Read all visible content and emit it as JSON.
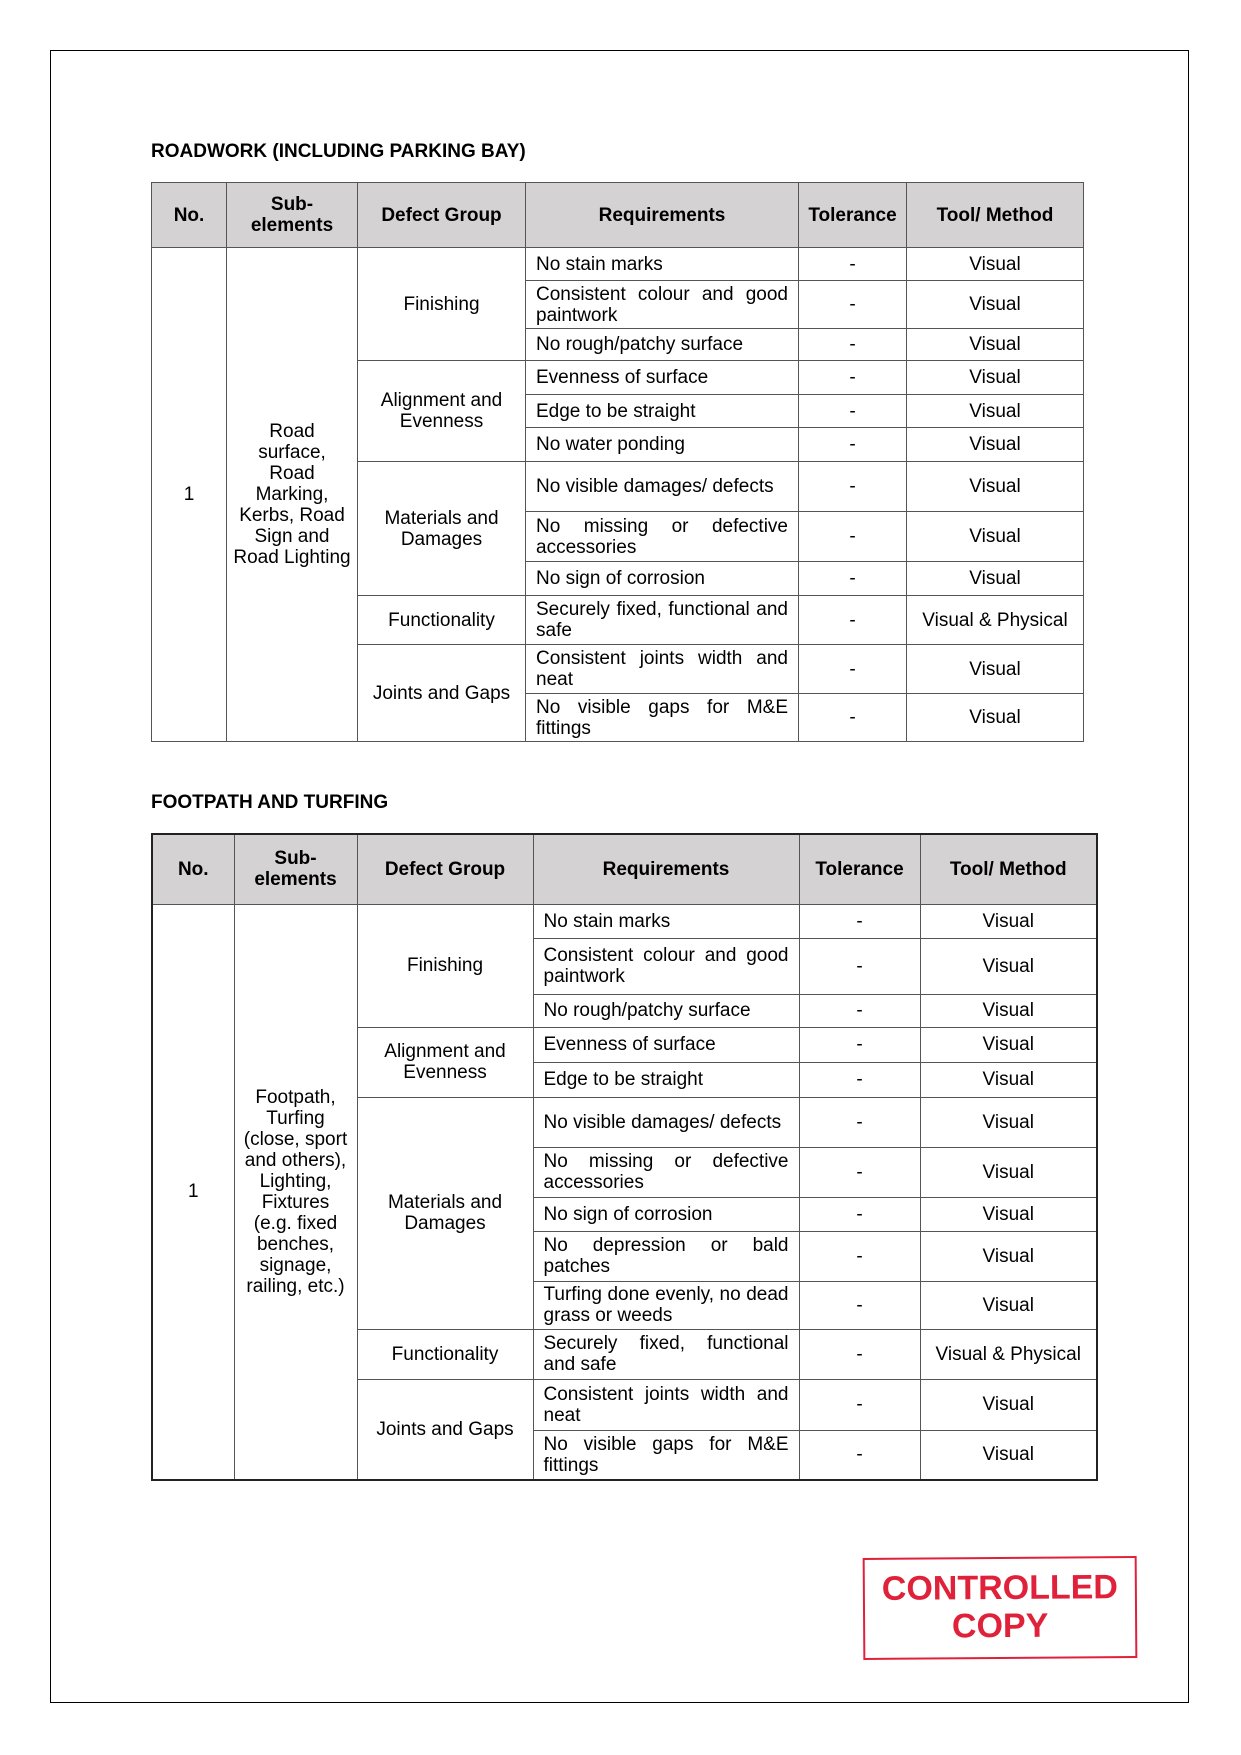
{
  "roadwork": {
    "title": "ROADWORK (INCLUDING PARKING BAY)",
    "headers": [
      "No.",
      "Sub-elements",
      "Defect Group",
      "Requirements",
      "Tolerance",
      "Tool/ Method"
    ],
    "no": "1",
    "sub_element": "Road surface, Road Marking, Kerbs, Road Sign and Road Lighting",
    "groups": [
      {
        "name": "Finishing",
        "rows": [
          {
            "req": "No stain marks",
            "tol": "-",
            "method": "Visual"
          },
          {
            "req": "Consistent colour and good paintwork",
            "tol": "-",
            "method": "Visual"
          },
          {
            "req": "No rough/patchy surface",
            "tol": "-",
            "method": "Visual"
          }
        ]
      },
      {
        "name": "Alignment and Evenness",
        "rows": [
          {
            "req": "Evenness of surface",
            "tol": "-",
            "method": "Visual"
          },
          {
            "req": "Edge to be straight",
            "tol": "-",
            "method": "Visual"
          },
          {
            "req": "No water ponding",
            "tol": "-",
            "method": "Visual"
          }
        ]
      },
      {
        "name": "Materials and Damages",
        "rows": [
          {
            "req": "No visible damages/ defects",
            "tol": "-",
            "method": "Visual"
          },
          {
            "req": "No missing or defective accessories",
            "tol": "-",
            "method": "Visual"
          },
          {
            "req": "No sign of corrosion",
            "tol": "-",
            "method": "Visual"
          }
        ]
      },
      {
        "name": "Functionality",
        "rows": [
          {
            "req": "Securely fixed, functional and safe",
            "tol": "-",
            "method": "Visual & Physical"
          }
        ]
      },
      {
        "name": "Joints and Gaps",
        "rows": [
          {
            "req": "Consistent joints width and neat",
            "tol": "-",
            "method": "Visual"
          },
          {
            "req": "No visible gaps for M&E fittings",
            "tol": "-",
            "method": "Visual"
          }
        ]
      }
    ]
  },
  "footpath": {
    "title": "FOOTPATH AND TURFING",
    "headers": [
      "No.",
      "Sub-elements",
      "Defect Group",
      "Requirements",
      "Tolerance",
      "Tool/ Method"
    ],
    "no": "1",
    "sub_element": "Footpath, Turfing (close, sport and others), Lighting, Fixtures (e.g. fixed benches, signage, railing, etc.)",
    "groups": [
      {
        "name": "Finishing",
        "rows": [
          {
            "req": "No stain marks",
            "tol": "-",
            "method": "Visual"
          },
          {
            "req": "Consistent colour and good paintwork",
            "tol": "-",
            "method": "Visual"
          },
          {
            "req": "No rough/patchy surface",
            "tol": "-",
            "method": "Visual"
          }
        ]
      },
      {
        "name": "Alignment and Evenness",
        "rows": [
          {
            "req": "Evenness of surface",
            "tol": "-",
            "method": "Visual"
          },
          {
            "req": "Edge to be straight",
            "tol": "-",
            "method": "Visual"
          }
        ]
      },
      {
        "name": "Materials and Damages",
        "rows": [
          {
            "req": "No visible damages/ defects",
            "tol": "-",
            "method": "Visual"
          },
          {
            "req": "No missing or defective accessories",
            "tol": "-",
            "method": "Visual"
          },
          {
            "req": "No sign of corrosion",
            "tol": "-",
            "method": "Visual"
          },
          {
            "req": "No depression or bald patches",
            "tol": "-",
            "method": "Visual"
          },
          {
            "req": "Turfing done evenly, no dead grass or weeds",
            "tol": "-",
            "method": "Visual"
          }
        ]
      },
      {
        "name": "Functionality",
        "rows": [
          {
            "req": "Securely fixed, functional and safe",
            "tol": "-",
            "method": "Visual & Physical"
          }
        ]
      },
      {
        "name": "Joints and Gaps",
        "rows": [
          {
            "req": "Consistent joints width and neat",
            "tol": "-",
            "method": "Visual"
          },
          {
            "req": "No visible gaps for M&E fittings",
            "tol": "-",
            "method": "Visual"
          }
        ]
      }
    ]
  },
  "stamp": {
    "line1": "CONTROLLED",
    "line2": "COPY",
    "color": "#e0213a"
  }
}
